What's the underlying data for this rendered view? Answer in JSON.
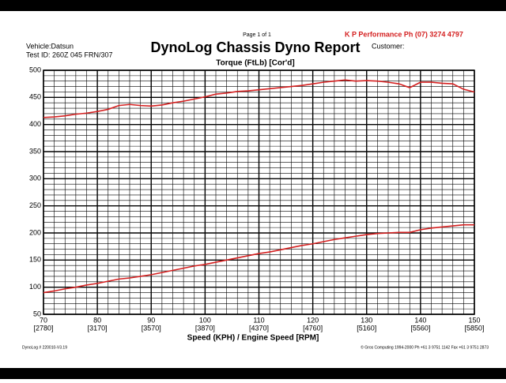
{
  "chart_data": {
    "type": "line",
    "title": "DynoLog Chassis Dyno Report",
    "page_label": "Page 1 of 1",
    "company": "K P Performance  Ph (07) 3274 4797",
    "vehicle": "Vehicle:Datsun",
    "test_id": "Test ID: 260Z 045 FRN/307",
    "customer": "Customer:",
    "subtitle": "Torque (FtLb) [Cor'd]",
    "x_label": "Speed (KPH) / Engine Speed [RPM]",
    "footer_left": "DynoLog # 220010-V3.19",
    "footer_right": "© Gros Computing 1994-2000   Ph +61 3 9751 1142   Fax +61 3 9751 2873",
    "x": [
      70,
      72,
      74,
      76,
      78,
      80,
      82,
      84,
      86,
      88,
      90,
      92,
      94,
      96,
      98,
      100,
      102,
      104,
      106,
      108,
      110,
      112,
      114,
      116,
      118,
      120,
      122,
      124,
      126,
      128,
      130,
      132,
      134,
      136,
      138,
      140,
      142,
      144,
      146,
      148,
      150
    ],
    "series": [
      {
        "color": "#d42020",
        "values": [
          413,
          414,
          416,
          419,
          421,
          424,
          428,
          435,
          437,
          435,
          434,
          436,
          440,
          443,
          447,
          451,
          456,
          458,
          461,
          462,
          464,
          466,
          468,
          470,
          472,
          475,
          478,
          480,
          482,
          480,
          481,
          480,
          478,
          475,
          468,
          478,
          478,
          476,
          475,
          465,
          460
        ]
      },
      {
        "color": "#d42020",
        "values": [
          90,
          93,
          97,
          100,
          104,
          107,
          111,
          115,
          117,
          120,
          123,
          127,
          131,
          135,
          139,
          142,
          146,
          150,
          154,
          158,
          162,
          165,
          169,
          173,
          177,
          180,
          184,
          188,
          191,
          194,
          197,
          199,
          200,
          201,
          201,
          206,
          209,
          211,
          213,
          215,
          215
        ]
      }
    ],
    "xlim": [
      70,
      150
    ],
    "ylim": [
      50,
      500
    ],
    "xticks": [
      70,
      80,
      90,
      100,
      110,
      120,
      130,
      140,
      150
    ],
    "xtick_rpm": [
      "[2780]",
      "[3170]",
      "[3570]",
      "[3870]",
      "[4370]",
      "[4760]",
      "[5160]",
      "[5560]",
      "[5850]"
    ],
    "yticks": [
      50,
      100,
      150,
      200,
      250,
      300,
      350,
      400,
      450,
      500
    ],
    "x_minor_step": 2,
    "y_minor_step": 10,
    "grid": true
  }
}
